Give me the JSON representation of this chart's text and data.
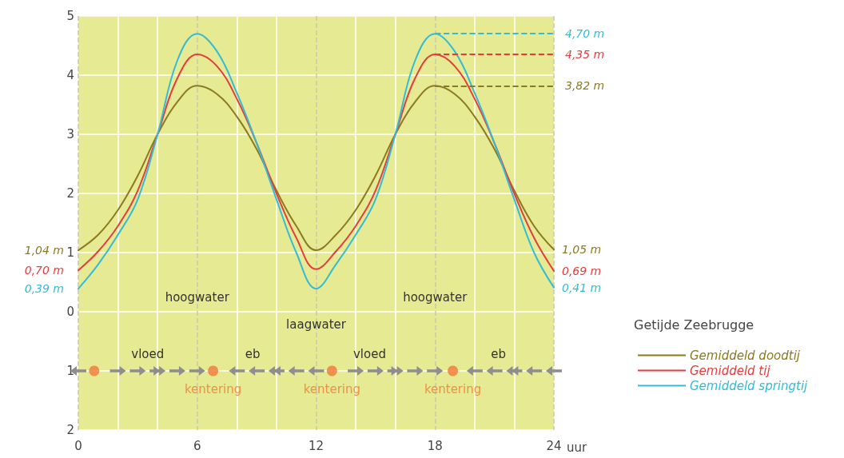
{
  "chart_data": {
    "type": "line",
    "xlabel": "uur",
    "legend_title": "Getijde Zeebrugge",
    "x": [
      0,
      1,
      2,
      3,
      4,
      5,
      6,
      7,
      8,
      9,
      10,
      11,
      12,
      13,
      14,
      15,
      16,
      17,
      18,
      19,
      20,
      21,
      22,
      23,
      24
    ],
    "series": [
      {
        "name": "Gemiddeld doodtij",
        "color": "#8a7a22",
        "values": [
          1.04,
          1.3,
          1.72,
          2.3,
          3.0,
          3.55,
          3.82,
          3.68,
          3.3,
          2.75,
          2.05,
          1.45,
          1.04,
          1.3,
          1.72,
          2.3,
          3.0,
          3.55,
          3.82,
          3.68,
          3.3,
          2.75,
          2.05,
          1.45,
          1.05
        ],
        "value_labels": [
          "1,04 m",
          null,
          null,
          null,
          null,
          null,
          null,
          null,
          null,
          null,
          null,
          null,
          null,
          null,
          null,
          null,
          null,
          null,
          "3,82 m",
          null,
          null,
          null,
          null,
          null,
          "1,05 m"
        ]
      },
      {
        "name": "Gemiddeld tij",
        "color": "#e53d3d",
        "values": [
          0.7,
          1.02,
          1.45,
          2.05,
          3.0,
          3.95,
          4.35,
          4.15,
          3.6,
          2.85,
          2.0,
          1.25,
          0.72,
          1.02,
          1.45,
          2.05,
          3.0,
          3.95,
          4.35,
          4.15,
          3.6,
          2.85,
          2.0,
          1.25,
          0.69
        ],
        "value_labels": [
          "0,70 m",
          null,
          null,
          null,
          null,
          null,
          null,
          null,
          null,
          null,
          null,
          null,
          null,
          null,
          null,
          null,
          null,
          null,
          "4,35 m",
          null,
          null,
          null,
          null,
          null,
          "0,69 m"
        ]
      },
      {
        "name": "Gemiddeld springtij",
        "color": "#33bcd6",
        "values": [
          0.39,
          0.8,
          1.3,
          1.9,
          3.0,
          4.25,
          4.7,
          4.4,
          3.7,
          2.85,
          1.9,
          1.0,
          0.39,
          0.8,
          1.3,
          1.9,
          3.0,
          4.25,
          4.7,
          4.4,
          3.7,
          2.85,
          1.9,
          1.0,
          0.41
        ],
        "value_labels": [
          "0,39 m",
          null,
          null,
          null,
          null,
          null,
          null,
          null,
          null,
          null,
          null,
          null,
          null,
          null,
          null,
          null,
          null,
          null,
          "4,70 m",
          null,
          null,
          null,
          null,
          null,
          "0,41 m"
        ]
      },
      {
        "type": "scatter",
        "marker": "circle",
        "color": "#f07838",
        "x": [
          0.8,
          6.8,
          12.8,
          18.9
        ],
        "values": [
          -1,
          -1,
          -1,
          -1
        ],
        "value_labels": [
          null,
          "kentering",
          "kentering",
          "kentering"
        ]
      }
    ],
    "xlim": [
      0,
      24
    ],
    "xticks": [
      0,
      6,
      12,
      18,
      24
    ],
    "ylim": [
      -2,
      5
    ],
    "yticks": [
      {
        "value": -2,
        "label": "2"
      },
      {
        "value": -1,
        "label": "1"
      },
      0,
      1,
      2,
      3,
      4,
      5
    ],
    "annotations": [
      "hoogwater",
      "laagwater",
      "hoogwater",
      "vloed",
      "eb",
      "vloed",
      "eb"
    ],
    "grid": true,
    "legend": "right",
    "marker": "none",
    "line_style": "solid"
  }
}
